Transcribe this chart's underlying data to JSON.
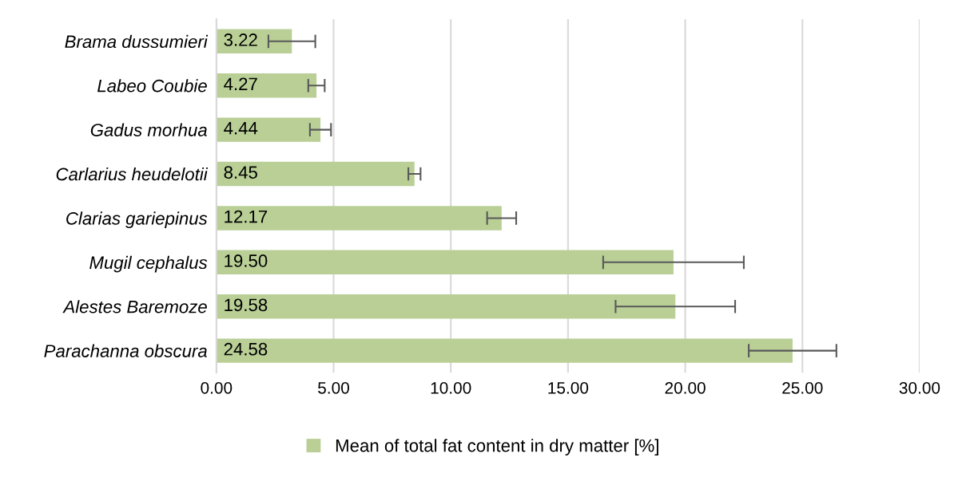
{
  "chart_data": {
    "type": "bar",
    "orientation": "horizontal",
    "categories": [
      "Brama dussumieri",
      "Labeo Coubie",
      "Gadus morhua",
      "Carlarius heudelotii",
      "Clarias gariepinus",
      "Mugil cephalus",
      "Alestes Baremoze",
      "Parachanna obscura"
    ],
    "series": [
      {
        "name": "Mean of total fat content in dry matter [%]",
        "color": "#b9cf96",
        "values": [
          3.22,
          4.27,
          4.44,
          8.45,
          12.17,
          19.5,
          19.58,
          24.58
        ],
        "errors": [
          1.0,
          0.35,
          0.45,
          0.26,
          0.62,
          3.0,
          2.55,
          1.87
        ],
        "value_labels": [
          "3.22",
          "4.27",
          "4.44",
          "8.45",
          "12.17",
          "19.50",
          "19.58",
          "24.58"
        ]
      }
    ],
    "xlim": [
      0,
      30
    ],
    "xticks": [
      {
        "value": 0,
        "label": "0.00"
      },
      {
        "value": 5,
        "label": "5.00"
      },
      {
        "value": 10,
        "label": "10.00"
      },
      {
        "value": 15,
        "label": "15.00"
      },
      {
        "value": 20,
        "label": "20.00"
      },
      {
        "value": 25,
        "label": "25.00"
      },
      {
        "value": 30,
        "label": "30.00"
      }
    ],
    "grid": "x",
    "legend": "bottom"
  }
}
